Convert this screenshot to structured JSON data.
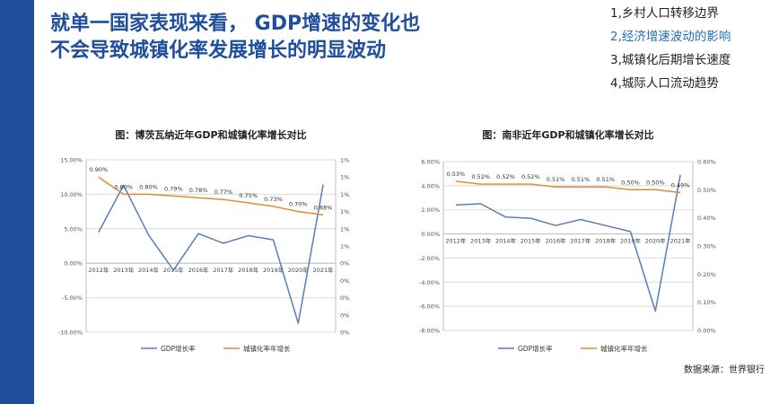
{
  "header": {
    "title_line1": "就单一国家表现来看， GDP增速的变化也",
    "title_line2": "不会导致城镇化率发展增长的明显波动"
  },
  "toc": {
    "items": [
      {
        "label": "1,乡村人口转移边界",
        "active": false
      },
      {
        "label": "2,经济增速波动的影响",
        "active": true
      },
      {
        "label": "3,城镇化后期增长速度",
        "active": false
      },
      {
        "label": "4,城际人口流动趋势",
        "active": false
      }
    ]
  },
  "colors": {
    "sidebar": "#1f4e9c",
    "title": "#1f4e9c",
    "active_toc": "#1f6fb5",
    "gdp_line": "#5b7db5",
    "urban_line": "#e08a3c",
    "grid": "#d9d9d9"
  },
  "chart_data": [
    {
      "type": "line",
      "title": "图：博茨瓦纳近年GDP和城镇化率增长对比",
      "categories": [
        "2012年",
        "2013年",
        "2014年",
        "2015年",
        "2016年",
        "2017年",
        "2018年",
        "2019年",
        "2020年",
        "2021年"
      ],
      "series": [
        {
          "name": "GDP增长率",
          "axis": "left",
          "values": [
            4.5,
            11.3,
            4.1,
            -1.0,
            4.3,
            2.9,
            4.0,
            3.4,
            -8.7,
            11.4
          ]
        },
        {
          "name": "城镇化率年增长",
          "axis": "right",
          "values": [
            0.9,
            0.8,
            0.8,
            0.79,
            0.78,
            0.77,
            0.75,
            0.73,
            0.7,
            0.68
          ]
        }
      ],
      "left_axis": {
        "min": -10,
        "max": 15,
        "step": 5,
        "tick_labels": [
          "15.00%",
          "10.00%",
          "5.00%",
          "0.00%",
          "-5.00%",
          "-10.00%"
        ]
      },
      "right_axis": {
        "min": 0,
        "max": 1,
        "step": 0.1,
        "tick_labels": [
          "1%",
          "1%",
          "1%",
          "1%",
          "1%",
          "1%",
          "0%",
          "0%",
          "0%",
          "0%",
          "0%"
        ]
      },
      "data_labels": [
        "0.90%",
        "0.80%",
        "0.80%",
        "0.79%",
        "0.78%",
        "0.77%",
        "0.75%",
        "0.73%",
        "0.70%",
        "0.68%"
      ],
      "legend": [
        "GDP增长率",
        "城镇化率年增长"
      ],
      "legend_position": "bottom",
      "x_axis_at": "zero",
      "grid": true
    },
    {
      "type": "line",
      "title": "图：南非近年GDP和城镇化率增长对比",
      "categories": [
        "2012年",
        "2013年",
        "2014年",
        "2015年",
        "2016年",
        "2017年",
        "2018年",
        "2019年",
        "2020年",
        "2021年"
      ],
      "series": [
        {
          "name": "GDP增长率",
          "axis": "left",
          "values": [
            2.4,
            2.5,
            1.4,
            1.3,
            0.7,
            1.2,
            0.7,
            0.2,
            -6.4,
            4.9
          ]
        },
        {
          "name": "城镇化率年增长",
          "axis": "right",
          "values": [
            0.53,
            0.52,
            0.52,
            0.52,
            0.51,
            0.51,
            0.51,
            0.5,
            0.5,
            0.49
          ]
        }
      ],
      "left_axis": {
        "min": -8,
        "max": 6,
        "step": 2,
        "tick_labels": [
          "6.00%",
          "4.00%",
          "2.00%",
          "0.00%",
          "-2.00%",
          "-4.00%",
          "-6.00%",
          "-8.00%"
        ]
      },
      "right_axis": {
        "min": 0,
        "max": 0.6,
        "step": 0.1,
        "tick_labels": [
          "0.60%",
          "0.50%",
          "0.40%",
          "0.30%",
          "0.20%",
          "0.10%",
          "0.00%"
        ]
      },
      "data_labels": [
        "0.53%",
        "0.52%",
        "0.52%",
        "0.52%",
        "0.51%",
        "0.51%",
        "0.51%",
        "0.50%",
        "0.50%",
        "0.49%"
      ],
      "legend": [
        "GDP增长率",
        "城镇化率年增长"
      ],
      "legend_position": "bottom",
      "x_axis_at": "zero",
      "grid": true
    }
  ],
  "footer": {
    "source": "数据来源：世界银行"
  }
}
